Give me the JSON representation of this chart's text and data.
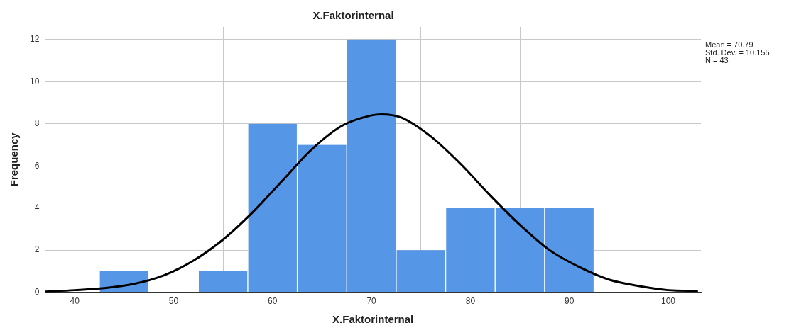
{
  "chart_data": {
    "type": "histogram",
    "title": "X.Faktorinternal",
    "xlabel": "X.Faktorinternal",
    "ylabel": "Frequency",
    "bins": [
      42.5,
      47.5,
      52.5,
      57.5,
      62.5,
      67.5,
      72.5,
      77.5,
      82.5,
      87.5,
      92.5
    ],
    "values": [
      1,
      0,
      1,
      8,
      7,
      12,
      2,
      4,
      4,
      4
    ],
    "color": "#5596e6",
    "series": [
      {
        "type": "line",
        "color": "#000000",
        "x": [
          37,
          40,
          43,
          46,
          49,
          52,
          55,
          58,
          61,
          64,
          67,
          70,
          71,
          73,
          76,
          79,
          82,
          85,
          88,
          91,
          94,
          97,
          100,
          103
        ],
        "values": [
          0.03,
          0.1,
          0.2,
          0.4,
          0.8,
          1.5,
          2.5,
          3.8,
          5.3,
          6.8,
          7.9,
          8.4,
          8.45,
          8.3,
          7.4,
          6.1,
          4.6,
          3.2,
          2.0,
          1.2,
          0.6,
          0.3,
          0.1,
          0.06
        ]
      }
    ],
    "xlim": [
      37,
      103.3
    ],
    "xticks": [
      40,
      50,
      60,
      70,
      80,
      90,
      100
    ],
    "ylim": [
      0,
      12.6
    ],
    "yticks": [
      0,
      2,
      4,
      6,
      8,
      10,
      12
    ],
    "grid": true,
    "legend": false,
    "annotations": [
      "Mean = 70.79",
      "Std. Dev. = 10.155",
      "N = 43"
    ]
  }
}
